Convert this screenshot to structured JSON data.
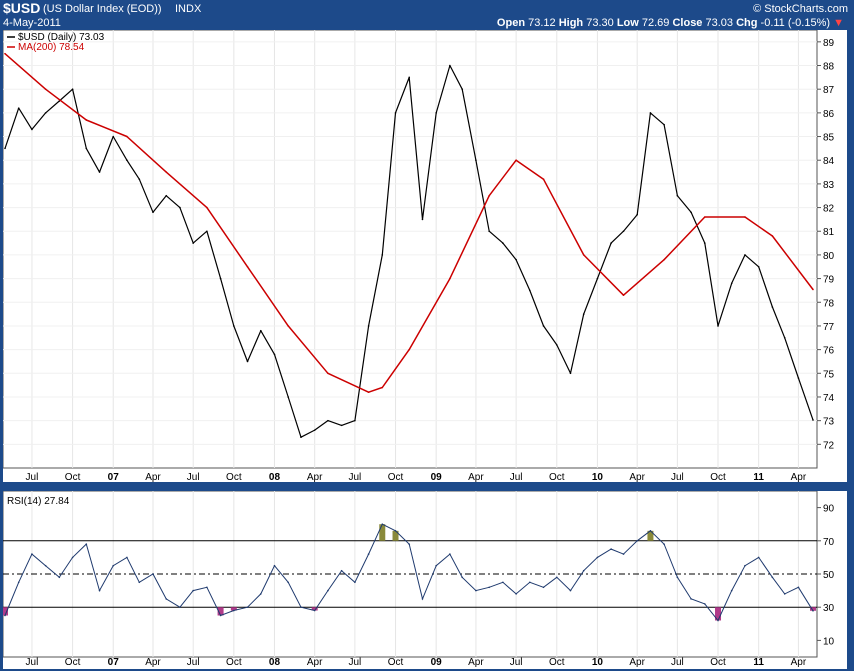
{
  "header": {
    "symbol": "$USD",
    "name": "(US Dollar Index (EOD))",
    "exchange": "INDX",
    "date": "4-May-2011",
    "brand": "© StockCharts.com",
    "open_label": "Open",
    "open": "73.12",
    "high_label": "High",
    "high": "73.30",
    "low_label": "Low",
    "low": "72.69",
    "close_label": "Close",
    "close": "73.03",
    "chg_label": "Chg",
    "chg": "-0.11 (-0.15%)"
  },
  "colors": {
    "frame": "#1d4a8a",
    "price": "#000000",
    "ma": "#cc0000",
    "rsi": "#1f3a6e",
    "overbought": "#8a8a3a",
    "oversold": "#b03a8a"
  },
  "chart_data": [
    {
      "type": "line",
      "legend_position": "top-left",
      "grid": true,
      "y_axis_side": "right",
      "ylim": [
        71,
        89.5
      ],
      "yticks": [
        "72",
        "73",
        "74",
        "75",
        "76",
        "77",
        "78",
        "79",
        "80",
        "81",
        "82",
        "83",
        "84",
        "85",
        "86",
        "87",
        "88",
        "89"
      ],
      "xticks": [
        "Jul",
        "Oct",
        "07",
        "Apr",
        "Jul",
        "Oct",
        "08",
        "Apr",
        "Jul",
        "Oct",
        "09",
        "Apr",
        "Jul",
        "Oct",
        "10",
        "Apr",
        "Jul",
        "Oct",
        "11",
        "Apr"
      ],
      "x_dates": [
        "2006-05",
        "2006-07",
        "2006-10",
        "2007-01",
        "2007-04",
        "2007-07",
        "2007-10",
        "2008-01",
        "2008-04",
        "2008-07",
        "2008-10",
        "2009-01",
        "2009-04",
        "2009-07",
        "2009-10",
        "2010-01",
        "2010-04",
        "2010-07",
        "2010-10",
        "2011-01",
        "2011-04",
        "2011-05"
      ],
      "series": [
        {
          "name": "$USD (Daily)",
          "legend_value": "73.03",
          "color": "#000000",
          "x": [
            "2006-05-01",
            "2006-06-01",
            "2006-07-01",
            "2006-08-01",
            "2006-09-01",
            "2006-10-01",
            "2006-11-01",
            "2006-12-01",
            "2007-01-01",
            "2007-02-01",
            "2007-03-01",
            "2007-04-01",
            "2007-05-01",
            "2007-06-01",
            "2007-07-01",
            "2007-08-01",
            "2007-09-01",
            "2007-10-01",
            "2007-11-01",
            "2007-12-01",
            "2008-01-01",
            "2008-02-01",
            "2008-03-01",
            "2008-04-01",
            "2008-05-01",
            "2008-06-01",
            "2008-07-01",
            "2008-08-01",
            "2008-09-01",
            "2008-10-01",
            "2008-11-01",
            "2008-12-01",
            "2009-01-01",
            "2009-02-01",
            "2009-03-01",
            "2009-04-01",
            "2009-05-01",
            "2009-06-01",
            "2009-07-01",
            "2009-08-01",
            "2009-09-01",
            "2009-10-01",
            "2009-11-01",
            "2009-12-01",
            "2010-01-01",
            "2010-02-01",
            "2010-03-01",
            "2010-04-01",
            "2010-05-01",
            "2010-06-01",
            "2010-07-01",
            "2010-08-01",
            "2010-09-01",
            "2010-10-01",
            "2010-11-01",
            "2010-12-01",
            "2011-01-01",
            "2011-02-01",
            "2011-03-01",
            "2011-04-01",
            "2011-05-04"
          ],
          "y": [
            84.5,
            86.2,
            85.3,
            86.0,
            86.5,
            87.0,
            84.5,
            83.5,
            85.0,
            84.0,
            83.2,
            81.8,
            82.5,
            82.0,
            80.5,
            81.0,
            79.0,
            77.0,
            75.5,
            76.8,
            75.8,
            74.0,
            72.3,
            72.6,
            73.0,
            72.8,
            73.0,
            77.0,
            80.0,
            86.0,
            87.5,
            81.5,
            86.0,
            88.0,
            87.0,
            84.0,
            81.0,
            80.5,
            79.8,
            78.5,
            77.0,
            76.2,
            75.0,
            77.5,
            79.0,
            80.5,
            81.0,
            81.7,
            86.0,
            85.5,
            82.5,
            81.8,
            80.5,
            77.0,
            78.8,
            80.0,
            79.5,
            77.8,
            76.5,
            74.8,
            73.03
          ]
        },
        {
          "name": "MA(200)",
          "legend_value": "78.54",
          "color": "#cc0000",
          "x": [
            "2006-05-01",
            "2006-08-01",
            "2006-11-01",
            "2007-02-01",
            "2007-05-01",
            "2007-08-01",
            "2007-11-01",
            "2008-02-01",
            "2008-05-01",
            "2008-08-01",
            "2008-09-01",
            "2008-11-01",
            "2009-02-01",
            "2009-05-01",
            "2009-07-01",
            "2009-09-01",
            "2009-12-01",
            "2010-03-01",
            "2010-06-01",
            "2010-09-01",
            "2010-12-01",
            "2011-02-01",
            "2011-05-04"
          ],
          "y": [
            88.5,
            87.0,
            85.7,
            85.0,
            83.5,
            82.0,
            79.5,
            77.0,
            75.0,
            74.2,
            74.4,
            76.0,
            79.0,
            82.5,
            84.0,
            83.2,
            80.0,
            78.3,
            79.8,
            81.6,
            81.6,
            80.8,
            78.54
          ]
        }
      ]
    },
    {
      "type": "line",
      "ylim": [
        0,
        100
      ],
      "yticks": [
        "10",
        "30",
        "50",
        "70",
        "90"
      ],
      "xticks": [
        "Jul",
        "Oct",
        "07",
        "Apr",
        "Jul",
        "Oct",
        "08",
        "Apr",
        "Jul",
        "Oct",
        "09",
        "Apr",
        "Jul",
        "Oct",
        "10",
        "Apr",
        "Jul",
        "Oct",
        "11",
        "Apr"
      ],
      "overbought": 70,
      "oversold": 30,
      "midline": 50,
      "series": [
        {
          "name": "RSI(14)",
          "legend_value": "27.84",
          "color": "#1f3a6e",
          "x": [
            "2006-05-01",
            "2006-06-01",
            "2006-07-01",
            "2006-08-01",
            "2006-09-01",
            "2006-10-01",
            "2006-11-01",
            "2006-12-01",
            "2007-01-01",
            "2007-02-01",
            "2007-03-01",
            "2007-04-01",
            "2007-05-01",
            "2007-06-01",
            "2007-07-01",
            "2007-08-01",
            "2007-09-01",
            "2007-10-01",
            "2007-11-01",
            "2007-12-01",
            "2008-01-01",
            "2008-02-01",
            "2008-03-01",
            "2008-04-01",
            "2008-05-01",
            "2008-06-01",
            "2008-07-01",
            "2008-08-01",
            "2008-09-01",
            "2008-10-01",
            "2008-11-01",
            "2008-12-01",
            "2009-01-01",
            "2009-02-01",
            "2009-03-01",
            "2009-04-01",
            "2009-05-01",
            "2009-06-01",
            "2009-07-01",
            "2009-08-01",
            "2009-09-01",
            "2009-10-01",
            "2009-11-01",
            "2009-12-01",
            "2010-01-01",
            "2010-02-01",
            "2010-03-01",
            "2010-04-01",
            "2010-05-01",
            "2010-06-01",
            "2010-07-01",
            "2010-08-01",
            "2010-09-01",
            "2010-10-01",
            "2010-11-01",
            "2010-12-01",
            "2011-01-01",
            "2011-02-01",
            "2011-03-01",
            "2011-04-01",
            "2011-05-04"
          ],
          "y": [
            25,
            45,
            62,
            55,
            48,
            60,
            68,
            40,
            55,
            60,
            45,
            50,
            35,
            30,
            40,
            42,
            25,
            28,
            30,
            38,
            55,
            45,
            30,
            28,
            40,
            52,
            45,
            62,
            80,
            76,
            68,
            35,
            55,
            62,
            48,
            40,
            42,
            45,
            38,
            45,
            42,
            48,
            40,
            52,
            60,
            65,
            62,
            70,
            76,
            68,
            48,
            35,
            32,
            22,
            40,
            55,
            60,
            48,
            38,
            42,
            27.84
          ]
        }
      ]
    }
  ],
  "legends": {
    "price": "$USD (Daily) 73.03",
    "ma": "MA(200) 78.54",
    "rsi": "RSI(14) 27.84"
  }
}
